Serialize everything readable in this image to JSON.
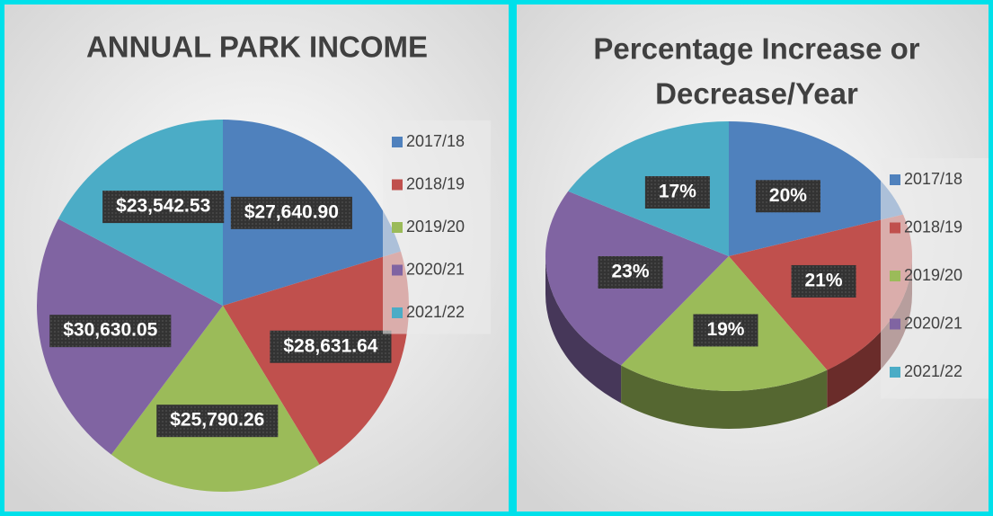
{
  "chart_data": [
    {
      "type": "pie",
      "title": "ANNUAL PARK INCOME",
      "categories": [
        "2017/18",
        "2018/19",
        "2019/20",
        "2020/21",
        "2021/22"
      ],
      "values": [
        27640.9,
        28631.64,
        25790.26,
        30630.05,
        23542.53
      ],
      "value_labels": [
        "$27,640.90",
        "$28,631.64",
        "$25,790.26",
        "$30,630.05",
        "$23,542.53"
      ],
      "colors": [
        "#4f81bd",
        "#c0504d",
        "#9bbb59",
        "#8064a2",
        "#4bacc6"
      ],
      "legend": "right"
    },
    {
      "type": "pie3d",
      "title": [
        "Percentage Increase or",
        "Decrease/Year"
      ],
      "categories": [
        "2017/18",
        "2018/19",
        "2019/20",
        "2020/21",
        "2021/22"
      ],
      "values": [
        20,
        21,
        19,
        23,
        17
      ],
      "value_labels": [
        "20%",
        "21%",
        "19%",
        "23%",
        "17%"
      ],
      "colors": [
        "#4f81bd",
        "#c0504d",
        "#9bbb59",
        "#8064a2",
        "#4bacc6"
      ],
      "legend": "right"
    }
  ]
}
